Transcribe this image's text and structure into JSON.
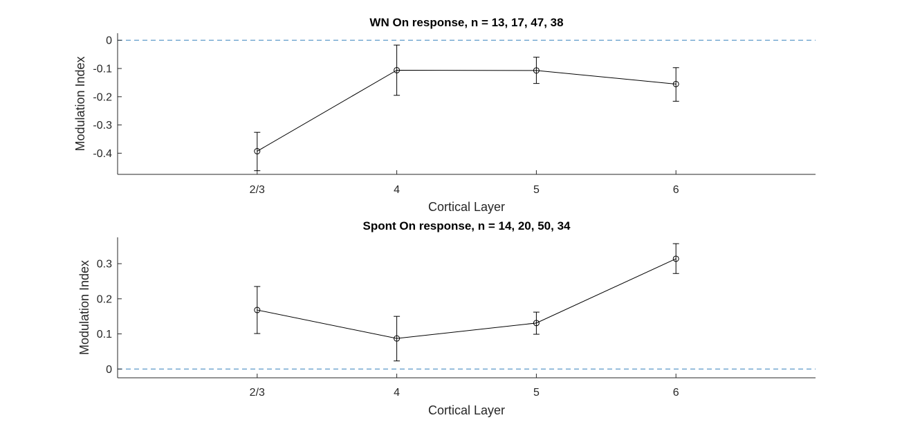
{
  "chart_data": [
    {
      "type": "line",
      "title": "WN On response, n = 13, 17, 47, 38",
      "xlabel": "Cortical Layer",
      "ylabel": "Modulation Index",
      "categories": [
        "2/3",
        "4",
        "5",
        "6"
      ],
      "xlim": [
        0,
        5
      ],
      "ylim": [
        -0.475,
        0.025
      ],
      "yticks": [
        0,
        -0.1,
        -0.2,
        -0.3,
        -0.4
      ],
      "ytick_labels": [
        "0",
        "-0.1",
        "-0.2",
        "-0.3",
        "-0.4"
      ],
      "series": [
        {
          "values": [
            -0.393,
            -0.106,
            -0.107,
            -0.155
          ],
          "err_low": [
            -0.462,
            -0.195,
            -0.153,
            -0.216
          ],
          "err_high": [
            -0.326,
            -0.017,
            -0.06,
            -0.097
          ]
        }
      ],
      "reference_line": 0,
      "grid": false,
      "colors": {
        "line": "#000000",
        "reference": "#4a8fc3"
      }
    },
    {
      "type": "line",
      "title": "Spont On response, n = 14, 20, 50, 34",
      "xlabel": "Cortical Layer",
      "ylabel": "Modulation Index",
      "categories": [
        "2/3",
        "4",
        "5",
        "6"
      ],
      "xlim": [
        0,
        5
      ],
      "ylim": [
        -0.025,
        0.375
      ],
      "yticks": [
        0,
        0.1,
        0.2,
        0.3
      ],
      "ytick_labels": [
        "0",
        "0.1",
        "0.2",
        "0.3"
      ],
      "series": [
        {
          "values": [
            0.168,
            0.087,
            0.131,
            0.314
          ],
          "err_low": [
            0.101,
            0.023,
            0.099,
            0.272
          ],
          "err_high": [
            0.235,
            0.15,
            0.162,
            0.357
          ]
        }
      ],
      "reference_line": 0,
      "grid": false,
      "colors": {
        "line": "#000000",
        "reference": "#4a8fc3"
      }
    }
  ]
}
